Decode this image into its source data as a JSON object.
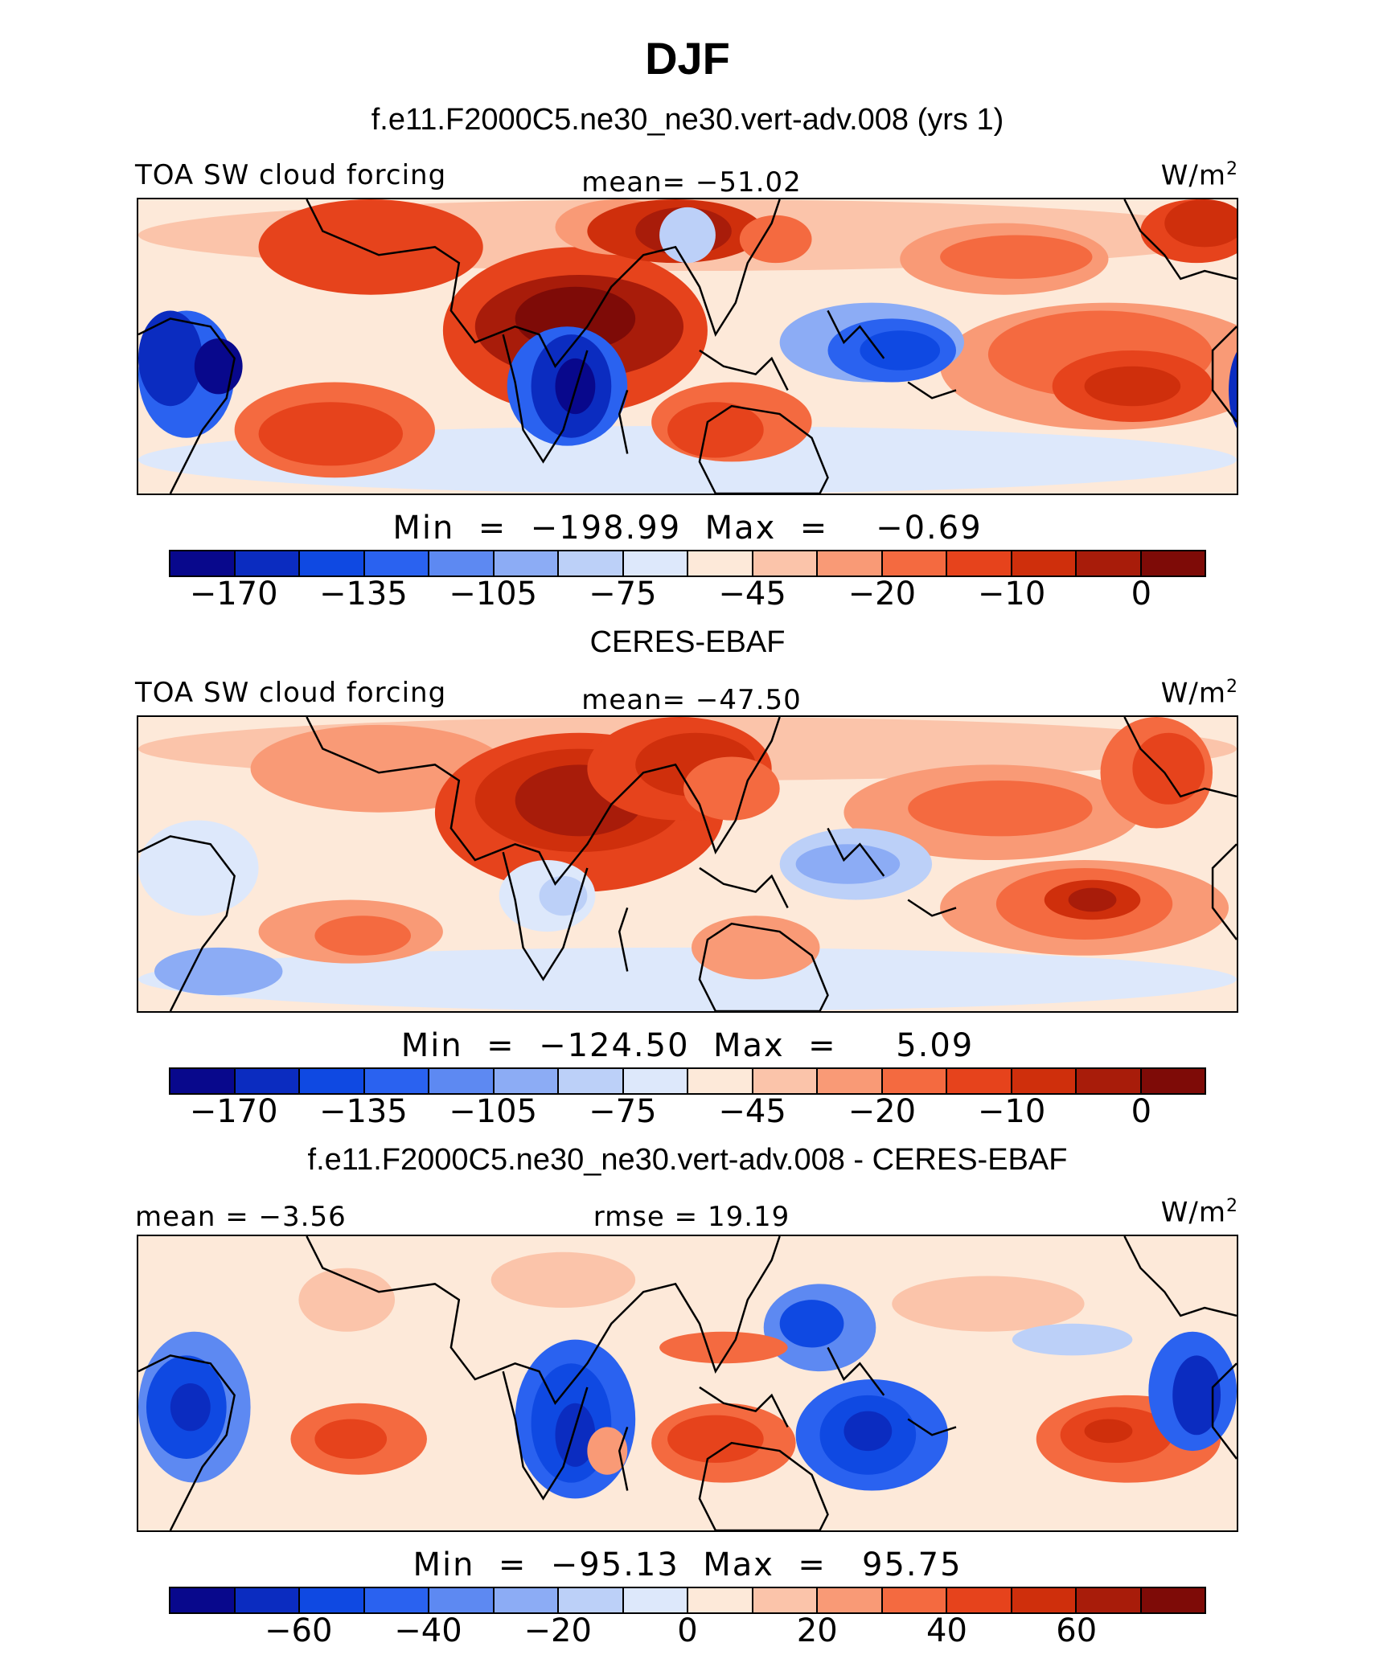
{
  "title": "DJF",
  "palette": [
    "#08088c",
    "#0b2cc0",
    "#0f49e2",
    "#2a62f0",
    "#5d89f2",
    "#8cacf5",
    "#bcd0f8",
    "#dde8fb",
    "#fde9d9",
    "#fbc4aa",
    "#f99a76",
    "#f46a40",
    "#e6431c",
    "#cf2f0c",
    "#a81c0a",
    "#7e0b07"
  ],
  "colors": {
    "land_outline": "#000000",
    "frame": "#000000"
  },
  "chart_data": [
    {
      "type": "heatmap",
      "case_title": "f.e11.F2000C5.ne30_ne30.vert-adv.008 (yrs 1)",
      "variable_label": "TOA SW cloud forcing",
      "stat_label": "mean=  −51.02",
      "units": "W/m",
      "units_sup": "2",
      "min_max_text": "Min  =  −198.99  Max  =    −0.69",
      "stats": {
        "mean": -51.02,
        "min": -198.99,
        "max": -0.69
      },
      "colorbar_ticks": [
        {
          "label": "−170",
          "boundary": 1
        },
        {
          "label": "−135",
          "boundary": 3
        },
        {
          "label": "−105",
          "boundary": 5
        },
        {
          "label": "−75",
          "boundary": 7
        },
        {
          "label": "−45",
          "boundary": 9
        },
        {
          "label": "−20",
          "boundary": 11
        },
        {
          "label": "−10",
          "boundary": 13
        },
        {
          "label": "0",
          "boundary": 15
        }
      ]
    },
    {
      "type": "heatmap",
      "case_title": "CERES-EBAF",
      "variable_label": "TOA SW cloud forcing",
      "stat_label": "mean=  −47.50",
      "units": "W/m",
      "units_sup": "2",
      "min_max_text": "Min  =  −124.50  Max  =     5.09",
      "stats": {
        "mean": -47.5,
        "min": -124.5,
        "max": 5.09
      },
      "colorbar_ticks": [
        {
          "label": "−170",
          "boundary": 1
        },
        {
          "label": "−135",
          "boundary": 3
        },
        {
          "label": "−105",
          "boundary": 5
        },
        {
          "label": "−75",
          "boundary": 7
        },
        {
          "label": "−45",
          "boundary": 9
        },
        {
          "label": "−20",
          "boundary": 11
        },
        {
          "label": "−10",
          "boundary": 13
        },
        {
          "label": "0",
          "boundary": 15
        }
      ]
    },
    {
      "type": "heatmap",
      "case_title": "f.e11.F2000C5.ne30_ne30.vert-adv.008 - CERES-EBAF",
      "variable_label": "mean =   −3.56",
      "stat_label": "rmse  =   19.19",
      "units": "W/m",
      "units_sup": "2",
      "min_max_text": "Min  =  −95.13  Max  =   95.75",
      "stats": {
        "mean": -3.56,
        "rmse": 19.19,
        "min": -95.13,
        "max": 95.75
      },
      "colorbar_ticks": [
        {
          "label": "−60",
          "boundary": 2
        },
        {
          "label": "−40",
          "boundary": 4
        },
        {
          "label": "−20",
          "boundary": 6
        },
        {
          "label": "0",
          "boundary": 8
        },
        {
          "label": "20",
          "boundary": 10
        },
        {
          "label": "40",
          "boundary": 12
        },
        {
          "label": "60",
          "boundary": 14
        }
      ]
    }
  ]
}
